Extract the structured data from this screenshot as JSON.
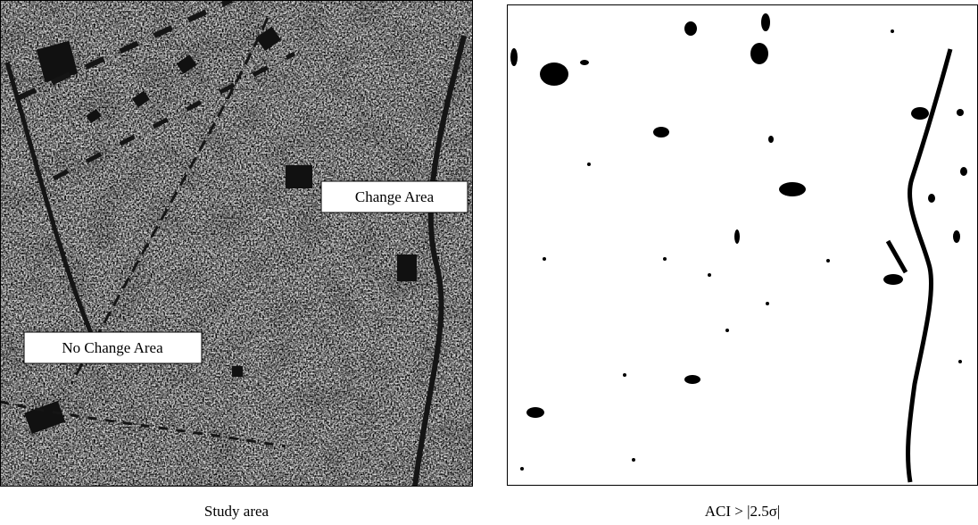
{
  "panels": [
    {
      "caption": "Study area",
      "labels": [
        "Change Area",
        "No Change Area"
      ]
    },
    {
      "caption": "ACI > |2.5σ|"
    }
  ]
}
